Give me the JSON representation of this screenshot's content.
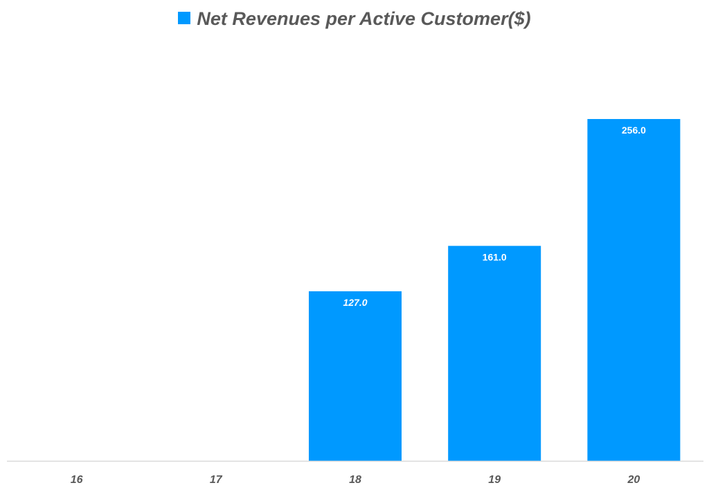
{
  "chart_data": {
    "type": "bar",
    "categories": [
      "16",
      "17",
      "18",
      "19",
      "20"
    ],
    "series": [
      {
        "name": "Net Revenues per Active Customer($)",
        "values": [
          null,
          null,
          127.0,
          161.0,
          256.0
        ],
        "color": "#0099FF"
      }
    ],
    "data_labels": [
      "",
      "",
      "127.0",
      "161.0",
      "256.0"
    ],
    "title": "",
    "xlabel": "",
    "ylabel": "",
    "ylim": [
      0,
      256
    ],
    "grid": false,
    "legend": "top",
    "y_axis_visible": false
  }
}
